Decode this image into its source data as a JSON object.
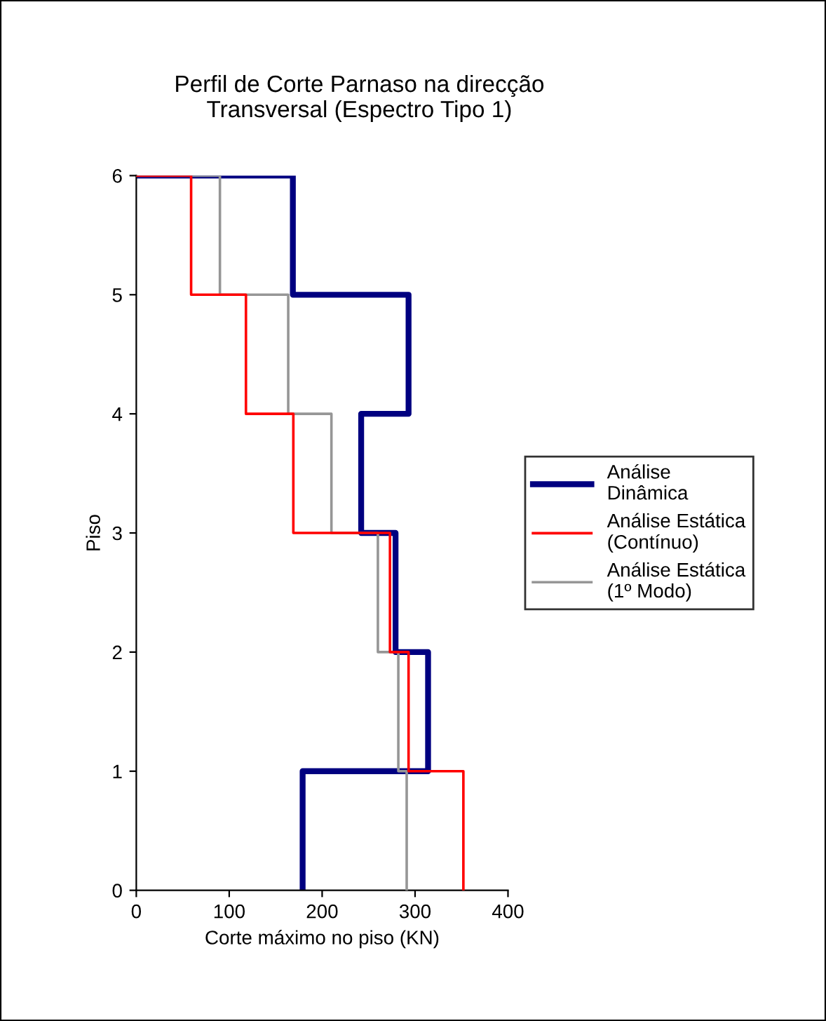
{
  "chart_data": {
    "type": "line",
    "title": "Perfil de Corte Parnaso na direcção\nTransversal (Espectro Tipo 1)",
    "xlabel": "Corte máximo no piso (KN)",
    "ylabel": "Piso",
    "series": [
      {
        "name": "Análise\nDinâmica",
        "color": "#000080",
        "x": [
          179,
          179,
          314,
          314,
          279,
          279,
          242,
          242,
          293,
          293,
          168.5,
          168.5,
          0
        ],
        "values": [
          0,
          1,
          1,
          2,
          2,
          3,
          3,
          4,
          4,
          5,
          5,
          6,
          6
        ]
      },
      {
        "name": "Análise Estática\n(Contínuo)",
        "color": "#ff0000",
        "x": [
          352,
          352,
          293,
          293,
          273,
          273,
          169,
          169,
          118,
          118,
          59,
          59,
          0
        ],
        "values": [
          0,
          1,
          1,
          2,
          2,
          3,
          3,
          4,
          4,
          5,
          5,
          6,
          6
        ]
      },
      {
        "name": "Análise Estática\n(1º Modo)",
        "color": "#969696",
        "x": [
          291,
          291,
          282,
          282,
          260,
          260,
          210,
          210,
          163.5,
          163.5,
          90,
          90,
          0
        ],
        "values": [
          0,
          1,
          1,
          2,
          2,
          3,
          3,
          4,
          4,
          5,
          5,
          6,
          6
        ]
      }
    ],
    "xlim": [
      0,
      400
    ],
    "xticks": [
      0,
      100,
      200,
      300,
      400
    ],
    "ylim": [
      0,
      6
    ],
    "yticks": [
      0,
      1,
      2,
      3,
      4,
      5,
      6
    ],
    "grid": false,
    "legend": "right",
    "marker": "none",
    "line_style": "solid"
  }
}
